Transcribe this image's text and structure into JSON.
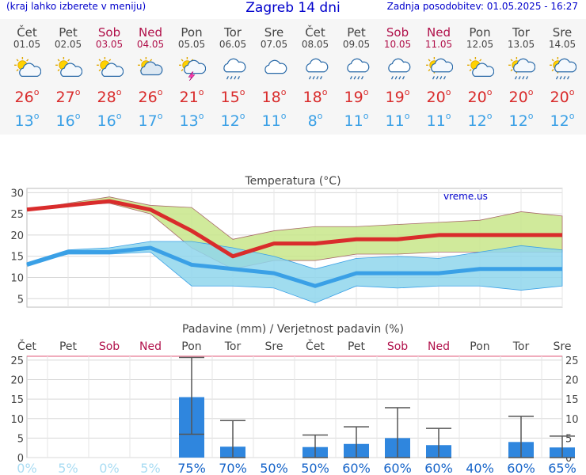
{
  "header": {
    "left": "(kraj lahko izberete v meniju)",
    "title": "Zagreb 14 dni",
    "right": "Zadnja posodobitev: 01.05.2025 - 16:27"
  },
  "days": [
    {
      "name": "Čet",
      "date": "01.05",
      "weekend": false,
      "icon": "sun-cloud-icon",
      "tmax": "26",
      "tmin": "13"
    },
    {
      "name": "Pet",
      "date": "02.05",
      "weekend": false,
      "icon": "sun-cloud-icon",
      "tmax": "27",
      "tmin": "16"
    },
    {
      "name": "Sob",
      "date": "03.05",
      "weekend": true,
      "icon": "sun-cloud-icon",
      "tmax": "28",
      "tmin": "16"
    },
    {
      "name": "Ned",
      "date": "04.05",
      "weekend": true,
      "icon": "cloud-sun-icon",
      "tmax": "26",
      "tmin": "17"
    },
    {
      "name": "Pon",
      "date": "05.05",
      "weekend": false,
      "icon": "sun-cloud-thunder-icon",
      "tmax": "21",
      "tmin": "13"
    },
    {
      "name": "Tor",
      "date": "06.05",
      "weekend": false,
      "icon": "cloud-rain-icon",
      "tmax": "15",
      "tmin": "12"
    },
    {
      "name": "Sre",
      "date": "07.05",
      "weekend": false,
      "icon": "cloud-icon",
      "tmax": "18",
      "tmin": "11"
    },
    {
      "name": "Čet",
      "date": "08.05",
      "weekend": false,
      "icon": "cloud-rain-icon",
      "tmax": "18",
      "tmin": "8"
    },
    {
      "name": "Pet",
      "date": "09.05",
      "weekend": false,
      "icon": "cloud-rain-icon",
      "tmax": "19",
      "tmin": "11"
    },
    {
      "name": "Sob",
      "date": "10.05",
      "weekend": true,
      "icon": "cloud-rain-icon",
      "tmax": "19",
      "tmin": "11"
    },
    {
      "name": "Ned",
      "date": "11.05",
      "weekend": true,
      "icon": "sun-cloud-rain-icon",
      "tmax": "20",
      "tmin": "11"
    },
    {
      "name": "Pon",
      "date": "12.05",
      "weekend": false,
      "icon": "sun-cloud-icon",
      "tmax": "20",
      "tmin": "12"
    },
    {
      "name": "Tor",
      "date": "13.05",
      "weekend": false,
      "icon": "sun-cloud-rain-icon",
      "tmax": "20",
      "tmin": "12"
    },
    {
      "name": "Sre",
      "date": "14.05",
      "weekend": false,
      "icon": "sun-cloud-rain-icon",
      "tmax": "20",
      "tmin": "12"
    }
  ],
  "colors": {
    "title": "#0000cc",
    "weekend": "#b0104a",
    "tmax": "#d92c2c",
    "tmin": "#3aa0e6",
    "tmax_band": "#c8e68a",
    "tmin_band": "#8fd6ec",
    "precip_bar": "#2f86de",
    "prob_low": "#a9dcf3",
    "prob_high": "#1664c9"
  },
  "chart_data": [
    {
      "type": "line",
      "title": "Temperatura (°C)",
      "watermark": "vreme.us",
      "x": [
        1,
        2,
        3,
        4,
        5,
        6,
        7,
        8,
        9,
        10,
        11,
        12,
        13,
        14
      ],
      "ylim": [
        3,
        31
      ],
      "yticks": [
        5,
        10,
        15,
        20,
        25,
        30
      ],
      "grid": true,
      "series": [
        {
          "values": [
            26,
            27,
            28,
            26,
            21,
            15,
            18,
            18,
            19,
            19,
            20,
            20,
            20,
            20
          ],
          "band_low": [
            26,
            27,
            27.5,
            25,
            17,
            12,
            14,
            14,
            15.5,
            15.5,
            16,
            16,
            16,
            16
          ],
          "band_high": [
            26,
            27.5,
            29,
            27,
            26.5,
            19,
            21,
            22,
            22,
            22.5,
            23,
            23.5,
            25.5,
            24.5
          ]
        },
        {
          "values": [
            13,
            16,
            16,
            17,
            13,
            12,
            11,
            8,
            11,
            11,
            11,
            12,
            12,
            12
          ],
          "band_low": [
            13,
            15.5,
            15.5,
            16,
            8,
            8,
            7.5,
            4,
            8,
            7.5,
            8,
            8,
            7,
            8
          ],
          "band_high": [
            13.5,
            16.5,
            17,
            18.5,
            18.5,
            17,
            15,
            12,
            14.5,
            15,
            14.5,
            16,
            17.5,
            16.5
          ]
        }
      ]
    },
    {
      "type": "bar",
      "title": "Padavine (mm) / Verjetnost padavin (%)",
      "categories": [
        "Čet",
        "Pet",
        "Sob",
        "Ned",
        "Pon",
        "Tor",
        "Sre",
        "Čet",
        "Pet",
        "Sob",
        "Ned",
        "Pon",
        "Tor",
        "Sre"
      ],
      "ylim": [
        0,
        26
      ],
      "yticks": [
        0,
        5,
        10,
        15,
        20,
        25
      ],
      "values": [
        0,
        0,
        0,
        0,
        15.5,
        2.8,
        0,
        2.7,
        3.5,
        5,
        3.2,
        0,
        4,
        2.6
      ],
      "error_low": [
        null,
        null,
        null,
        null,
        6,
        0,
        null,
        0,
        0,
        0,
        0,
        null,
        0,
        0
      ],
      "error_high": [
        null,
        null,
        null,
        null,
        25.7,
        9.5,
        null,
        5.8,
        7.9,
        12.8,
        7.5,
        null,
        10.6,
        5.5
      ],
      "probability": [
        "0%",
        "5%",
        "0%",
        "5%",
        "75%",
        "70%",
        "50%",
        "50%",
        "60%",
        "60%",
        "60%",
        "40%",
        "60%",
        "65%"
      ]
    }
  ]
}
